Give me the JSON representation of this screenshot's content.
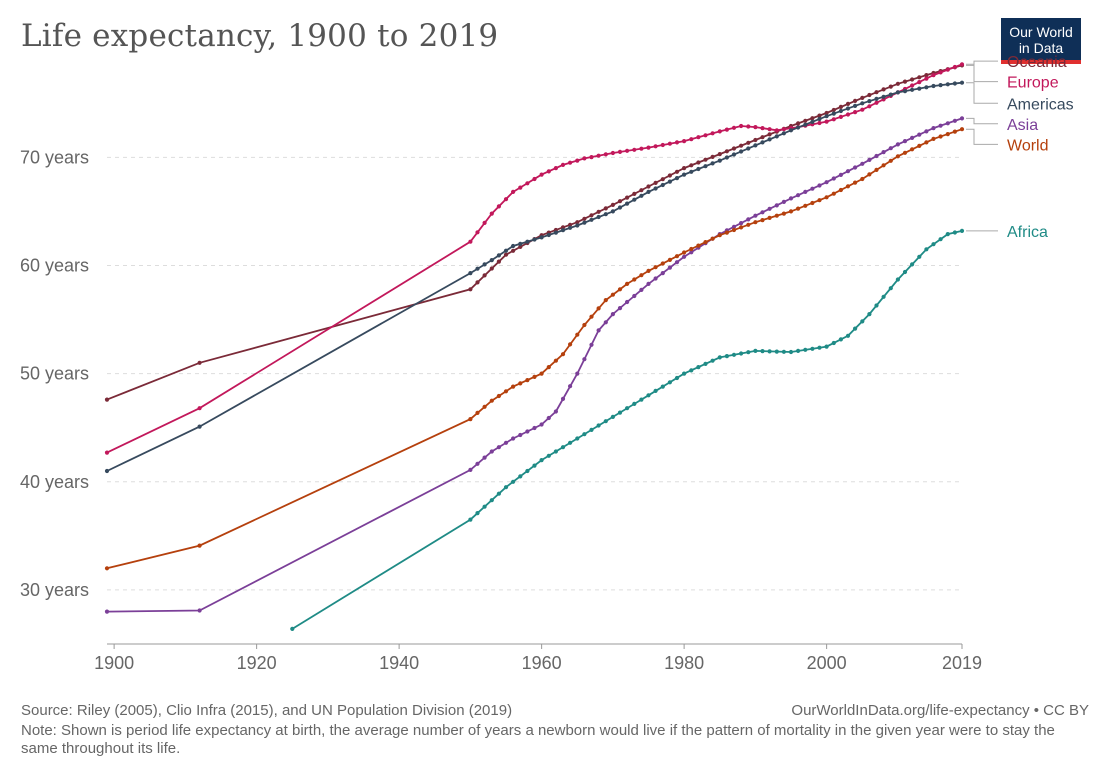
{
  "title": "Life expectancy, 1900 to 2019",
  "logo": {
    "line1": "Our World",
    "line2": "in Data"
  },
  "footer": {
    "source": "Source: Riley (2005), Clio Infra (2015), and UN Population Division (2019)",
    "url": "OurWorldInData.org/life-expectancy • CC BY",
    "note": "Note: Shown is period life expectancy at birth, the average number of years a newborn would live if the pattern of mortality in the given year were to stay the same throughout its life."
  },
  "chart_data": {
    "type": "line",
    "xlim": [
      1899,
      2019
    ],
    "ylim": [
      25,
      79
    ],
    "x_ticks": [
      {
        "value": 1900,
        "label": "1900"
      },
      {
        "value": 1920,
        "label": "1920"
      },
      {
        "value": 1940,
        "label": "1940"
      },
      {
        "value": 1960,
        "label": "1960"
      },
      {
        "value": 1980,
        "label": "1980"
      },
      {
        "value": 2000,
        "label": "2000"
      },
      {
        "value": 2019,
        "label": "2019"
      }
    ],
    "y_ticks": [
      {
        "value": 30,
        "label": "30 years"
      },
      {
        "value": 40,
        "label": "40 years"
      },
      {
        "value": 50,
        "label": "50 years"
      },
      {
        "value": 60,
        "label": "60 years"
      },
      {
        "value": 70,
        "label": "70 years"
      }
    ],
    "grid": "horizontal dashed",
    "legend_position": "right",
    "series": [
      {
        "name": "Oceania",
        "color": "#7b2a38",
        "label_y": 78.9,
        "points": [
          [
            1899,
            47.6
          ],
          [
            1912,
            51.0
          ],
          [
            1950,
            57.8
          ],
          [
            1955,
            61.0
          ],
          [
            1960,
            62.8
          ],
          [
            1965,
            64.0
          ],
          [
            1970,
            65.6
          ],
          [
            1975,
            67.3
          ],
          [
            1980,
            69.0
          ],
          [
            1985,
            70.3
          ],
          [
            1990,
            71.6
          ],
          [
            1995,
            72.9
          ],
          [
            2000,
            74.1
          ],
          [
            2005,
            75.5
          ],
          [
            2010,
            76.8
          ],
          [
            2015,
            77.8
          ],
          [
            2019,
            78.5
          ]
        ]
      },
      {
        "name": "Europe",
        "color": "#c2185b",
        "label_y": 77.0,
        "points": [
          [
            1899,
            42.7
          ],
          [
            1912,
            46.8
          ],
          [
            1950,
            62.2
          ],
          [
            1953,
            64.8
          ],
          [
            1956,
            66.8
          ],
          [
            1960,
            68.4
          ],
          [
            1963,
            69.3
          ],
          [
            1966,
            69.9
          ],
          [
            1970,
            70.4
          ],
          [
            1975,
            70.9
          ],
          [
            1980,
            71.5
          ],
          [
            1985,
            72.4
          ],
          [
            1988,
            72.9
          ],
          [
            1990,
            72.8
          ],
          [
            1993,
            72.5
          ],
          [
            1996,
            72.8
          ],
          [
            2000,
            73.3
          ],
          [
            2005,
            74.4
          ],
          [
            2010,
            76.0
          ],
          [
            2015,
            77.6
          ],
          [
            2019,
            78.6
          ]
        ]
      },
      {
        "name": "Americas",
        "color": "#374a5e",
        "label_y": 75.0,
        "points": [
          [
            1899,
            41.0
          ],
          [
            1912,
            45.1
          ],
          [
            1950,
            59.3
          ],
          [
            1953,
            60.5
          ],
          [
            1956,
            61.8
          ],
          [
            1960,
            62.6
          ],
          [
            1965,
            63.7
          ],
          [
            1970,
            65.0
          ],
          [
            1975,
            66.8
          ],
          [
            1980,
            68.4
          ],
          [
            1985,
            69.7
          ],
          [
            1990,
            71.1
          ],
          [
            1995,
            72.5
          ],
          [
            2000,
            73.8
          ],
          [
            2005,
            75.0
          ],
          [
            2010,
            76.0
          ],
          [
            2015,
            76.6
          ],
          [
            2019,
            76.9
          ]
        ]
      },
      {
        "name": "Asia",
        "color": "#7b3f98",
        "label_y": 73.1,
        "points": [
          [
            1899,
            28.0
          ],
          [
            1912,
            28.1
          ],
          [
            1950,
            41.1
          ],
          [
            1953,
            42.8
          ],
          [
            1956,
            44.0
          ],
          [
            1960,
            45.3
          ],
          [
            1962,
            46.5
          ],
          [
            1965,
            50.0
          ],
          [
            1968,
            54.0
          ],
          [
            1970,
            55.5
          ],
          [
            1975,
            58.3
          ],
          [
            1980,
            60.8
          ],
          [
            1985,
            62.9
          ],
          [
            1990,
            64.6
          ],
          [
            1995,
            66.2
          ],
          [
            2000,
            67.7
          ],
          [
            2005,
            69.4
          ],
          [
            2010,
            71.2
          ],
          [
            2015,
            72.7
          ],
          [
            2019,
            73.6
          ]
        ]
      },
      {
        "name": "World",
        "color": "#b5400d",
        "label_y": 71.2,
        "points": [
          [
            1899,
            32.0
          ],
          [
            1912,
            34.1
          ],
          [
            1950,
            45.8
          ],
          [
            1953,
            47.5
          ],
          [
            1956,
            48.8
          ],
          [
            1960,
            50.0
          ],
          [
            1963,
            51.8
          ],
          [
            1966,
            54.5
          ],
          [
            1969,
            56.8
          ],
          [
            1972,
            58.3
          ],
          [
            1975,
            59.5
          ],
          [
            1980,
            61.2
          ],
          [
            1985,
            62.8
          ],
          [
            1990,
            64.0
          ],
          [
            1995,
            65.0
          ],
          [
            2000,
            66.3
          ],
          [
            2005,
            68.0
          ],
          [
            2010,
            70.1
          ],
          [
            2015,
            71.7
          ],
          [
            2019,
            72.6
          ]
        ]
      },
      {
        "name": "Africa",
        "color": "#1f8b86",
        "label_y": 63.2,
        "points": [
          [
            1925,
            26.4
          ],
          [
            1950,
            36.5
          ],
          [
            1955,
            39.5
          ],
          [
            1960,
            42.0
          ],
          [
            1965,
            44.0
          ],
          [
            1970,
            46.0
          ],
          [
            1975,
            48.0
          ],
          [
            1980,
            50.0
          ],
          [
            1985,
            51.5
          ],
          [
            1990,
            52.1
          ],
          [
            1995,
            52.0
          ],
          [
            2000,
            52.5
          ],
          [
            2003,
            53.5
          ],
          [
            2006,
            55.5
          ],
          [
            2010,
            58.7
          ],
          [
            2014,
            61.5
          ],
          [
            2017,
            62.9
          ],
          [
            2019,
            63.2
          ]
        ]
      }
    ]
  }
}
